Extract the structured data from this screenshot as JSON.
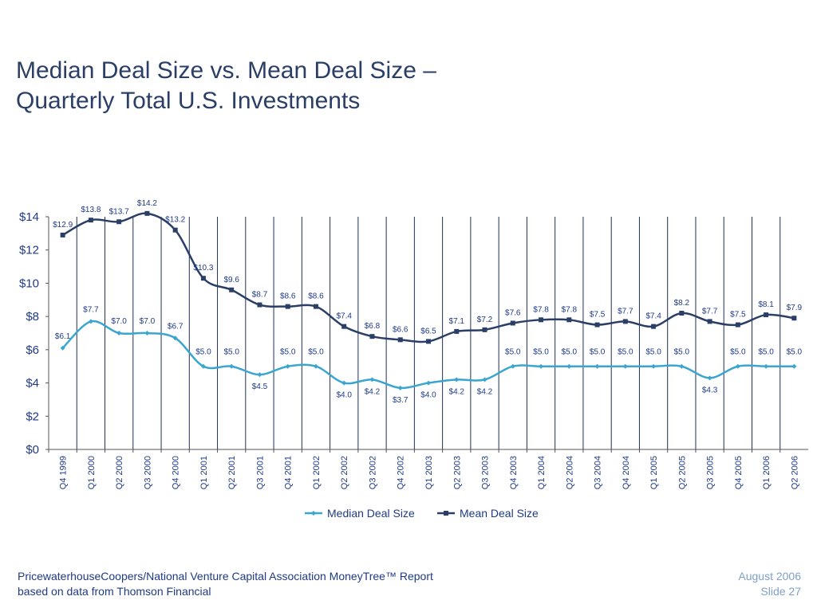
{
  "slide": {
    "title_line1": "Median Deal Size vs. Mean Deal Size –",
    "title_line2": "Quarterly Total U.S. Investments",
    "footer_line1": "PricewaterhouseCoopers/National Venture Capital Association MoneyTree™ Report",
    "footer_line2": "based on data from Thomson Financial",
    "date": "August 2006",
    "slide_number": "Slide 27"
  },
  "colors": {
    "median": "#3aa6d0",
    "mean": "#2b3f66",
    "grid": "#1f2f55",
    "axis_text": "#1f3a86"
  },
  "chart_data": {
    "type": "line",
    "title": "",
    "xlabel": "",
    "ylabel": "",
    "categories": [
      "Q4 1999",
      "Q1 2000",
      "Q2 2000",
      "Q3 2000",
      "Q4 2000",
      "Q1 2001",
      "Q2 2001",
      "Q3 2001",
      "Q4 2001",
      "Q1 2002",
      "Q2 2002",
      "Q3 2002",
      "Q4 2002",
      "Q1 2003",
      "Q2 2003",
      "Q3 2003",
      "Q4 2003",
      "Q1 2004",
      "Q2 2004",
      "Q3 2004",
      "Q4 2004",
      "Q1 2005",
      "Q2 2005",
      "Q3 2005",
      "Q4 2005",
      "Q1 2006",
      "Q2 2006"
    ],
    "series": [
      {
        "name": "Median Deal Size",
        "marker": "diamond",
        "values": [
          6.1,
          7.7,
          7.0,
          7.0,
          6.7,
          5.0,
          5.0,
          4.5,
          5.0,
          5.0,
          4.0,
          4.2,
          3.7,
          4.0,
          4.2,
          4.2,
          5.0,
          5.0,
          5.0,
          5.0,
          5.0,
          5.0,
          5.0,
          4.3,
          5.0,
          5.0,
          5.0
        ],
        "labels": [
          "$6.1",
          "$7.7",
          "$7.0",
          "$7.0",
          "$6.7",
          "$5.0",
          "$5.0",
          "$4.5",
          "$5.0",
          "$5.0",
          "$4.0",
          "$4.2",
          "$3.7",
          "$4.0",
          "$4.2",
          "$4.2",
          "$5.0",
          "$5.0",
          "$5.0",
          "$5.0",
          "$5.0",
          "$5.0",
          "$5.0",
          "$4.3",
          "$5.0",
          "$5.0",
          "$5.0"
        ]
      },
      {
        "name": "Mean Deal Size",
        "marker": "square",
        "values": [
          12.9,
          13.8,
          13.7,
          14.2,
          13.2,
          10.3,
          9.6,
          8.7,
          8.6,
          8.6,
          7.4,
          6.8,
          6.6,
          6.5,
          7.1,
          7.2,
          7.6,
          7.8,
          7.8,
          7.5,
          7.7,
          7.4,
          8.2,
          7.7,
          7.5,
          8.1,
          7.9
        ],
        "labels": [
          "$12.9",
          "$13.8",
          "$13.7",
          "$14.2",
          "$13.2",
          "$10.3",
          "$9.6",
          "$8.7",
          "$8.6",
          "$8.6",
          "$7.4",
          "$6.8",
          "$6.6",
          "$6.5",
          "$7.1",
          "$7.2",
          "$7.6",
          "$7.8",
          "$7.8",
          "$7.5",
          "$7.7",
          "$7.4",
          "$8.2",
          "$7.7",
          "$7.5",
          "$8.1",
          "$7.9"
        ]
      }
    ],
    "ylim": [
      0,
      14
    ],
    "yticks": [
      0,
      2,
      4,
      6,
      8,
      10,
      12,
      14
    ],
    "ytick_labels": [
      "$0",
      "$2",
      "$4",
      "$6",
      "$8",
      "$10",
      "$12",
      "$14"
    ],
    "grid": "vertical",
    "legend": "bottom"
  }
}
